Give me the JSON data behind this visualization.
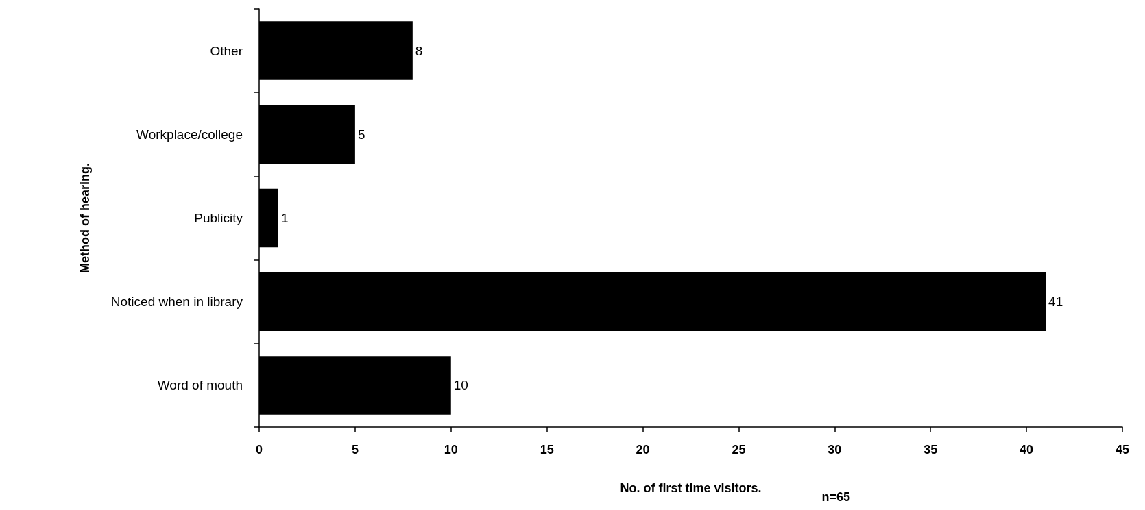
{
  "chart_data": {
    "type": "bar",
    "orientation": "horizontal",
    "xlabel": "No. of first time visitors.",
    "ylabel": "Method of hearing.",
    "annotations": [
      "n=65"
    ],
    "categories": [
      "Other",
      "Workplace/college",
      "Publicity",
      "Noticed when in library",
      "Word of mouth"
    ],
    "values": [
      8,
      5,
      1,
      41,
      10
    ],
    "color": "#000000",
    "xlim": [
      0,
      45
    ],
    "xticks": [
      0,
      5,
      10,
      15,
      20,
      25,
      30,
      35,
      40,
      45
    ],
    "data_labels": true,
    "grid": false
  }
}
